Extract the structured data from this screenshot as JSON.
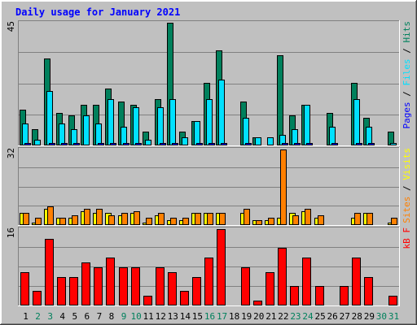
{
  "chart_data": [
    {
      "type": "bar",
      "title": "Daily usage for January 2021",
      "panel": "top",
      "ymax": 45,
      "ymax_label": "45",
      "side_label": [
        "Pages",
        "/",
        "Files",
        "/",
        "Hits"
      ],
      "categories": [
        "1",
        "2",
        "3",
        "4",
        "5",
        "6",
        "7",
        "8",
        "9",
        "10",
        "11",
        "12",
        "13",
        "14",
        "15",
        "16",
        "17",
        "18",
        "19",
        "20",
        "21",
        "22",
        "23",
        "24",
        "25",
        "26",
        "27",
        "28",
        "29",
        "30",
        "31"
      ],
      "series": [
        {
          "name": "Hits",
          "color": "#00805c",
          "values": [
            13,
            6,
            32,
            12,
            11,
            15,
            15,
            21,
            16,
            15,
            5,
            17,
            45,
            5,
            9,
            23,
            35,
            0,
            16,
            3,
            0,
            33,
            11,
            15,
            0,
            12,
            0,
            23,
            10,
            0,
            5
          ]
        },
        {
          "name": "Files",
          "color": "#00e0ff",
          "values": [
            8,
            2,
            20,
            8,
            6,
            11,
            8,
            17,
            7,
            14,
            2,
            14,
            17,
            3,
            9,
            17,
            24,
            0,
            10,
            3,
            3,
            4,
            6,
            15,
            0,
            7,
            0,
            17,
            7,
            0,
            1
          ]
        },
        {
          "name": "Pages",
          "color": "#0000ff",
          "values": [
            1,
            0,
            1,
            1,
            1,
            0,
            1,
            1,
            1,
            1,
            0,
            1,
            1,
            0,
            1,
            1,
            1,
            0,
            1,
            0,
            0,
            1,
            1,
            1,
            0,
            1,
            0,
            1,
            1,
            0,
            0
          ]
        }
      ]
    },
    {
      "type": "bar",
      "panel": "middle",
      "ymax": 32,
      "ymax_label": "32",
      "side_label": [
        "Sites",
        "/",
        "Visits"
      ],
      "categories": [
        "1",
        "2",
        "3",
        "4",
        "5",
        "6",
        "7",
        "8",
        "9",
        "10",
        "11",
        "12",
        "13",
        "14",
        "15",
        "16",
        "17",
        "18",
        "19",
        "20",
        "21",
        "22",
        "23",
        "24",
        "25",
        "26",
        "27",
        "28",
        "29",
        "30",
        "31"
      ],
      "series": [
        {
          "name": "Visits",
          "color": "#ffff00",
          "values": [
            5,
            1,
            7,
            3,
            3,
            6,
            5,
            5,
            4,
            5,
            1,
            4,
            2,
            2,
            5,
            5,
            5,
            0,
            5,
            2,
            2,
            3,
            5,
            6,
            3,
            0,
            0,
            3,
            5,
            0,
            1
          ]
        },
        {
          "name": "Sites",
          "color": "#ff8000",
          "values": [
            5,
            3,
            8,
            3,
            4,
            7,
            7,
            4,
            5,
            6,
            3,
            5,
            3,
            3,
            5,
            5,
            5,
            0,
            7,
            2,
            3,
            32,
            4,
            7,
            4,
            0,
            0,
            5,
            5,
            0,
            3
          ]
        }
      ]
    },
    {
      "type": "bar",
      "panel": "bottom",
      "ymax": 16,
      "ymax_label": "16",
      "side_label": [
        "kB",
        "F"
      ],
      "categories": [
        "1",
        "2",
        "3",
        "4",
        "5",
        "6",
        "7",
        "8",
        "9",
        "10",
        "11",
        "12",
        "13",
        "14",
        "15",
        "16",
        "17",
        "18",
        "19",
        "20",
        "21",
        "22",
        "23",
        "24",
        "25",
        "26",
        "27",
        "28",
        "29",
        "30",
        "31"
      ],
      "series": [
        {
          "name": "kB F",
          "color": "#ff0000",
          "values": [
            7,
            3,
            14,
            6,
            6,
            9,
            8,
            10,
            8,
            8,
            2,
            8,
            7,
            3,
            6,
            10,
            16,
            0,
            8,
            1,
            7,
            12,
            4,
            10,
            4,
            0,
            4,
            10,
            6,
            0,
            2
          ]
        }
      ]
    }
  ],
  "x_axis": {
    "labels": [
      "1",
      "2",
      "3",
      "4",
      "5",
      "6",
      "7",
      "8",
      "9",
      "10",
      "11",
      "12",
      "13",
      "14",
      "15",
      "16",
      "17",
      "18",
      "19",
      "20",
      "21",
      "22",
      "23",
      "24",
      "25",
      "26",
      "27",
      "28",
      "29",
      "30",
      "31"
    ],
    "weekend_days": [
      "2",
      "3",
      "9",
      "10",
      "16",
      "17",
      "23",
      "24",
      "30",
      "31"
    ],
    "weekday_color": "#000000",
    "weekend_color": "#00805c"
  },
  "colors": {
    "title": "#0000ff",
    "background": "#c0c0c0",
    "gridline": "#808080"
  }
}
